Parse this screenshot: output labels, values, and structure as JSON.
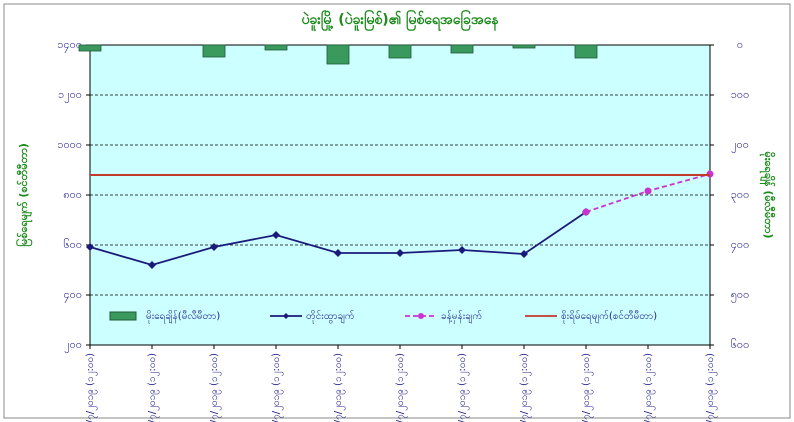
{
  "chart_data": {
    "type": "combo",
    "title": "ပဲခူးမြို့ (ပဲခူးမြစ်)၏ မြစ်ရေအခြေအနေ",
    "y_label": "မြစ်ရေမျက် (စင်တီမီတာ)",
    "y2_label": "မိုးရေချိန် (မီလီမီတာ)",
    "categories": [
      "၂၁/၇/၂၀၁၉ (၁၂:၀၀)",
      "၂၂/၇/၂၀၁၉ (၁၂:၀၀)",
      "၂၃/၇/၂၀၁၉ (၁၂:၀၀)",
      "၂၄/၇/၂၀၁၉ (၁၂:၀၀)",
      "၂၅/၇/၂၀၁၉ (၁၂:၀၀)",
      "၂၆/၇/၂၀၁၉ (၁၂:၀၀)",
      "၂၇/၇/၂၀၁၉ (၁၂:၀၀)",
      "၂၈/၇/၂၀၁၉ (၁၂:၀၀)",
      "၂၉/၇/၂၀၁၉ (၁၂:၀၀)",
      "၃၀/၇/၂၀၁၉ (၁၂:၀၀)",
      "၃၁/၇/၂၀၁၉ (၁၂:၀၀)"
    ],
    "series": [
      {
        "name": "မိုးရေချိန်(မီလီမီတာ)",
        "kind": "bar",
        "axis": "y2",
        "color": "#3a9a5e",
        "values": [
          12,
          0,
          24,
          10,
          38,
          26,
          16,
          6,
          26,
          0,
          0
        ]
      },
      {
        "name": "တိုင်းထွာချက်",
        "kind": "line",
        "color": "#1a1a7a",
        "values": [
          592,
          520,
          592,
          640,
          568,
          568,
          580,
          564,
          732,
          null,
          null
        ]
      },
      {
        "name": "ခန့်မှန်းချက်",
        "kind": "dashed",
        "color": "#cc33cc",
        "values": [
          null,
          null,
          null,
          null,
          null,
          null,
          null,
          null,
          732,
          816,
          884
        ]
      },
      {
        "name": "စိုးရိမ်ရေမျက်(စင်တီမီတာ)",
        "kind": "hline",
        "color": "#c0392b",
        "value": 880
      }
    ],
    "ylim": [
      200,
      1400
    ],
    "yticks": [
      {
        "value": 200,
        "label": "၂၀၀"
      },
      {
        "value": 400,
        "label": "၄၀၀"
      },
      {
        "value": 600,
        "label": "၆၀၀"
      },
      {
        "value": 800,
        "label": "၈၀၀"
      },
      {
        "value": 1000,
        "label": "၁၀၀၀"
      },
      {
        "value": 1200,
        "label": "၁၂၀၀"
      },
      {
        "value": 1400,
        "label": "၁၄၀၀"
      }
    ],
    "y2lim": [
      600,
      0
    ],
    "y2ticks": [
      {
        "value": 0,
        "label": "၀"
      },
      {
        "value": 100,
        "label": "၁၀၀"
      },
      {
        "value": 200,
        "label": "၂၀၀"
      },
      {
        "value": 300,
        "label": "၃၀၀"
      },
      {
        "value": 400,
        "label": "၄၀၀"
      },
      {
        "value": 500,
        "label": "၅၀၀"
      },
      {
        "value": 600,
        "label": "၆၀၀"
      }
    ],
    "grid": true,
    "background": "#ccffff"
  }
}
